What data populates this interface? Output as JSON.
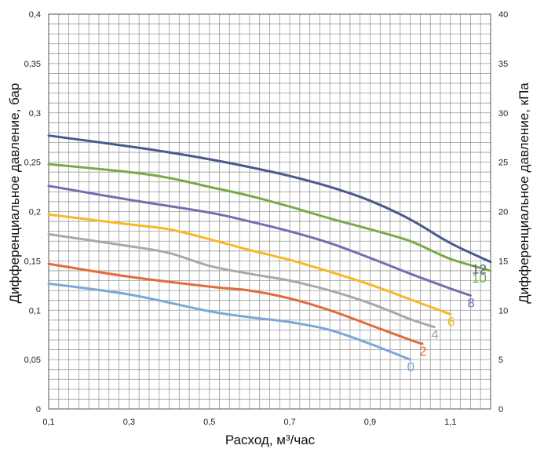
{
  "chart_data": {
    "type": "line",
    "xlabel": "Расход, м³/час",
    "ylabel_left": "Дифференциальное давление, бар",
    "ylabel_right": "Дифференциальное давление, кПа",
    "xlim": [
      0.1,
      1.2
    ],
    "ylim_left": [
      0,
      0.4
    ],
    "ylim_right": [
      0,
      40
    ],
    "grid": true,
    "x_ticks": [
      "0,1",
      "0,3",
      "0,5",
      "0,7",
      "0,9",
      "1,1"
    ],
    "x_tick_values": [
      0.1,
      0.3,
      0.5,
      0.7,
      0.9,
      1.1
    ],
    "y_left_ticks": [
      "0",
      "0,05",
      "0,1",
      "0,15",
      "0,2",
      "0,25",
      "0,3",
      "0,35",
      "0,4"
    ],
    "y_left_tick_values": [
      0,
      0.05,
      0.1,
      0.15,
      0.2,
      0.25,
      0.3,
      0.35,
      0.4
    ],
    "y_right_ticks": [
      "0",
      "5",
      "10",
      "15",
      "20",
      "25",
      "30",
      "35",
      "40"
    ],
    "y_right_tick_values": [
      0,
      5,
      10,
      15,
      20,
      25,
      30,
      35,
      40
    ],
    "series": [
      {
        "label": "0",
        "color": "#7ba7d9",
        "points": [
          [
            0.1,
            0.127
          ],
          [
            0.3,
            0.116
          ],
          [
            0.5,
            0.099
          ],
          [
            0.6,
            0.093
          ],
          [
            0.7,
            0.088
          ],
          [
            0.8,
            0.08
          ],
          [
            0.9,
            0.066
          ],
          [
            1.0,
            0.05
          ]
        ]
      },
      {
        "label": "2",
        "color": "#e46a3a",
        "points": [
          [
            0.1,
            0.147
          ],
          [
            0.3,
            0.134
          ],
          [
            0.5,
            0.124
          ],
          [
            0.6,
            0.12
          ],
          [
            0.7,
            0.112
          ],
          [
            0.8,
            0.1
          ],
          [
            0.9,
            0.085
          ],
          [
            1.0,
            0.07
          ],
          [
            1.03,
            0.066
          ]
        ]
      },
      {
        "label": "4",
        "color": "#a8a8a8",
        "points": [
          [
            0.1,
            0.177
          ],
          [
            0.3,
            0.165
          ],
          [
            0.4,
            0.158
          ],
          [
            0.5,
            0.145
          ],
          [
            0.6,
            0.137
          ],
          [
            0.7,
            0.13
          ],
          [
            0.8,
            0.12
          ],
          [
            0.9,
            0.107
          ],
          [
            1.0,
            0.091
          ],
          [
            1.06,
            0.083
          ]
        ]
      },
      {
        "label": "6",
        "color": "#f8b825",
        "points": [
          [
            0.1,
            0.197
          ],
          [
            0.3,
            0.187
          ],
          [
            0.4,
            0.182
          ],
          [
            0.5,
            0.172
          ],
          [
            0.6,
            0.161
          ],
          [
            0.7,
            0.151
          ],
          [
            0.8,
            0.139
          ],
          [
            0.9,
            0.126
          ],
          [
            1.0,
            0.111
          ],
          [
            1.1,
            0.096
          ]
        ]
      },
      {
        "label": "8",
        "color": "#7070b0",
        "points": [
          [
            0.1,
            0.226
          ],
          [
            0.3,
            0.212
          ],
          [
            0.5,
            0.199
          ],
          [
            0.6,
            0.19
          ],
          [
            0.7,
            0.18
          ],
          [
            0.8,
            0.168
          ],
          [
            0.9,
            0.153
          ],
          [
            1.0,
            0.137
          ],
          [
            1.1,
            0.122
          ],
          [
            1.15,
            0.115
          ]
        ]
      },
      {
        "label": "10",
        "color": "#79aa48",
        "points": [
          [
            0.1,
            0.248
          ],
          [
            0.3,
            0.24
          ],
          [
            0.4,
            0.234
          ],
          [
            0.5,
            0.225
          ],
          [
            0.6,
            0.216
          ],
          [
            0.7,
            0.205
          ],
          [
            0.8,
            0.193
          ],
          [
            0.9,
            0.182
          ],
          [
            1.0,
            0.17
          ],
          [
            1.1,
            0.152
          ],
          [
            1.2,
            0.14
          ]
        ]
      },
      {
        "label": "12",
        "color": "#4a5a8c",
        "points": [
          [
            0.1,
            0.277
          ],
          [
            0.3,
            0.266
          ],
          [
            0.4,
            0.26
          ],
          [
            0.5,
            0.253
          ],
          [
            0.6,
            0.245
          ],
          [
            0.7,
            0.236
          ],
          [
            0.8,
            0.225
          ],
          [
            0.9,
            0.211
          ],
          [
            1.0,
            0.192
          ],
          [
            1.1,
            0.168
          ],
          [
            1.2,
            0.149
          ]
        ]
      }
    ]
  }
}
